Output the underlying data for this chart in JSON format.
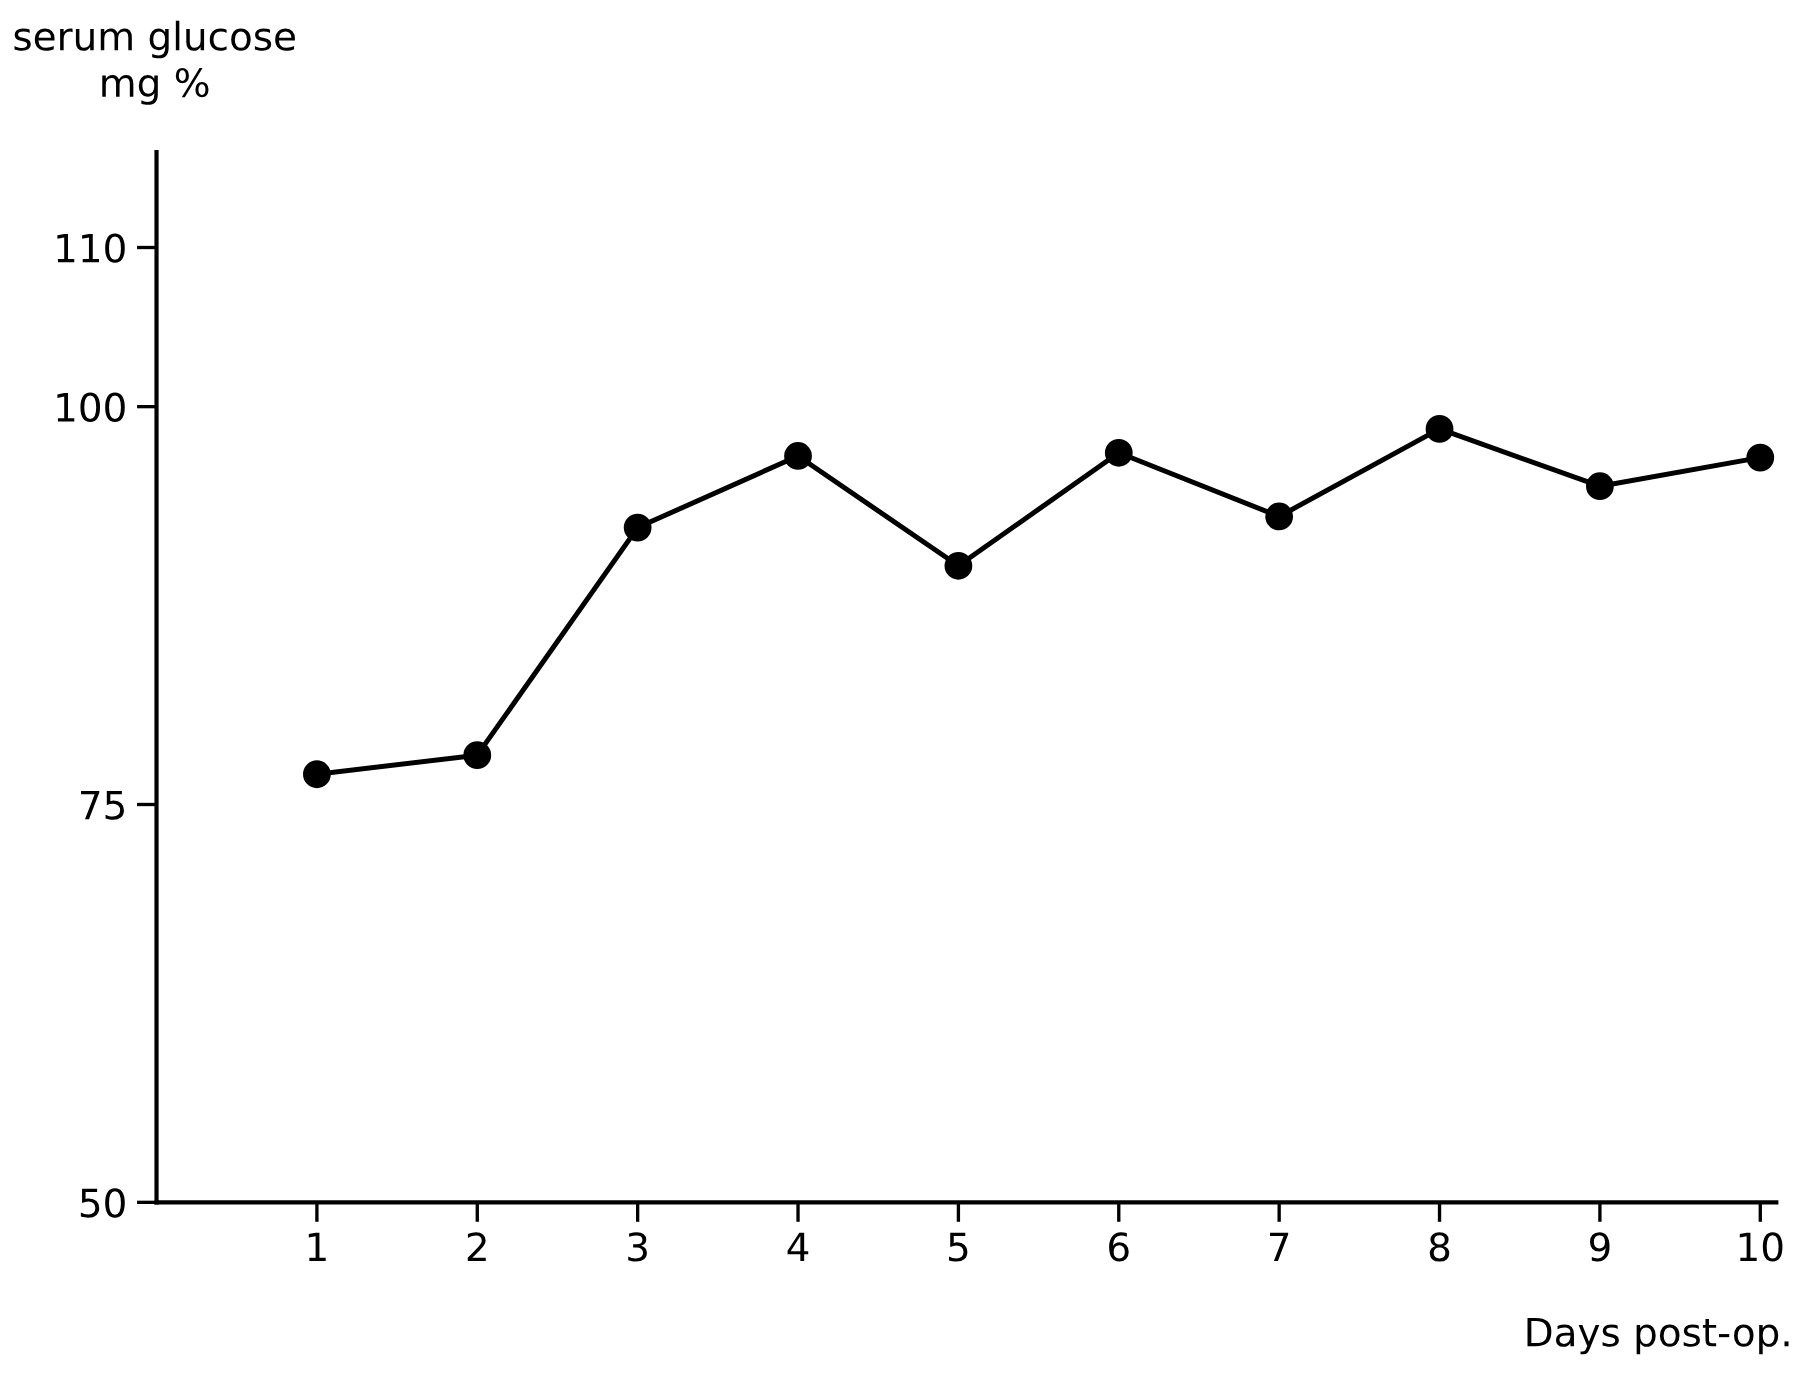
{
  "chart_data": {
    "type": "line",
    "ylabel": "serum glucose\nmg %",
    "xlabel": "Days post-op.",
    "x": [
      1,
      2,
      3,
      4,
      5,
      6,
      7,
      8,
      9,
      10
    ],
    "series": [
      {
        "color": "#000000",
        "values": [
          76.9,
          78.1,
          92.4,
          96.9,
          90.0,
          97.1,
          93.1,
          98.6,
          95.0,
          96.8
        ]
      }
    ],
    "xlim": [
      0,
      10.1
    ],
    "xticks": [
      1,
      2,
      3,
      4,
      5,
      6,
      7,
      8,
      9,
      10
    ],
    "ylim": [
      50,
      116
    ],
    "yticks": [
      50,
      75,
      100,
      110
    ],
    "marker": "circle",
    "line_style": "solid",
    "grid": false,
    "legend": false
  }
}
